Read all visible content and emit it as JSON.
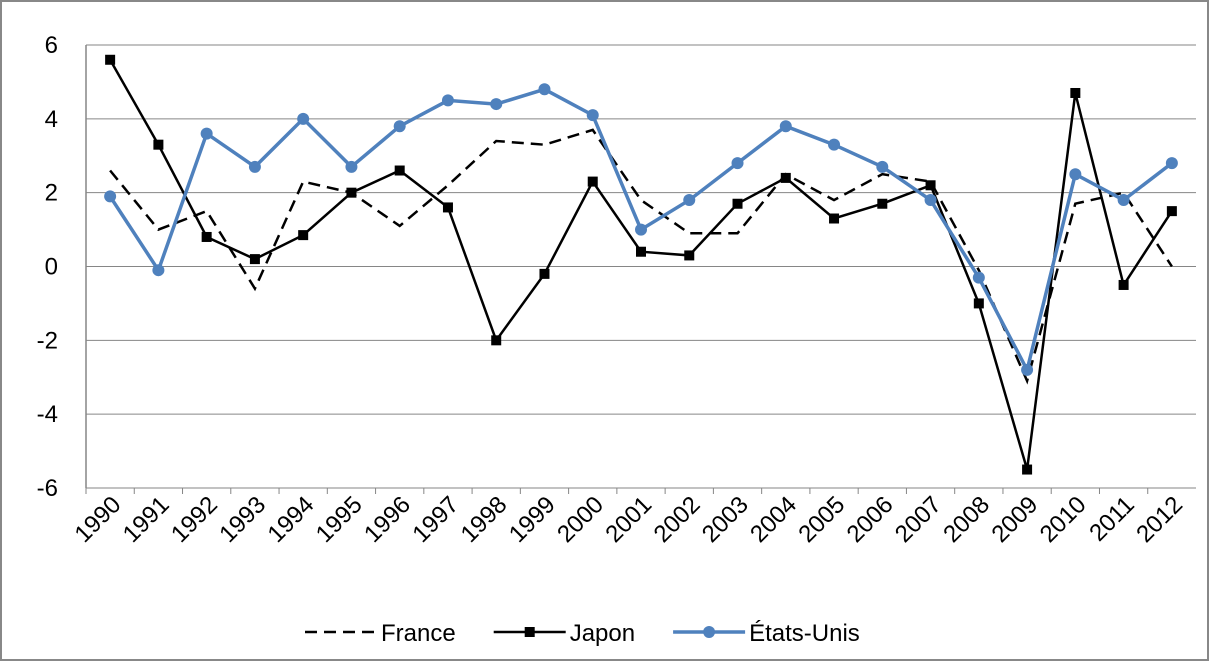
{
  "chart_data": {
    "type": "line",
    "categories": [
      "1990",
      "1991",
      "1992",
      "1993",
      "1994",
      "1995",
      "1996",
      "1997",
      "1998",
      "1999",
      "2000",
      "2001",
      "2002",
      "2003",
      "2004",
      "2005",
      "2006",
      "2007",
      "2008",
      "2009",
      "2010",
      "2011",
      "2012"
    ],
    "series": [
      {
        "name": "France",
        "color": "#000000",
        "dash": true,
        "marker": "none",
        "values": [
          2.6,
          1.0,
          1.5,
          -0.6,
          2.3,
          2.0,
          1.1,
          2.2,
          3.4,
          3.3,
          3.7,
          1.8,
          0.9,
          0.9,
          2.5,
          1.8,
          2.5,
          2.3,
          -0.1,
          -3.1,
          1.7,
          2.0,
          0.0
        ]
      },
      {
        "name": "Japon",
        "color": "#000000",
        "dash": false,
        "marker": "square",
        "values": [
          5.6,
          3.3,
          0.8,
          0.2,
          0.85,
          2.0,
          2.6,
          1.6,
          -2.0,
          -0.2,
          2.3,
          0.4,
          0.3,
          1.7,
          2.4,
          1.3,
          1.7,
          2.2,
          -1.0,
          -5.5,
          4.7,
          -0.5,
          1.5
        ]
      },
      {
        "name": "États-Unis",
        "color": "#4f81bd",
        "dash": false,
        "marker": "circle",
        "values": [
          1.9,
          -0.1,
          3.6,
          2.7,
          4.0,
          2.7,
          3.8,
          4.5,
          4.4,
          4.8,
          4.1,
          1.0,
          1.8,
          2.8,
          3.8,
          3.3,
          2.7,
          1.8,
          -0.3,
          -2.8,
          2.5,
          1.8,
          2.8
        ]
      }
    ],
    "ylim": [
      -6,
      6
    ],
    "yticks": [
      -6,
      -4,
      -2,
      0,
      2,
      4,
      6
    ],
    "grid": true,
    "legend": "bottom"
  }
}
